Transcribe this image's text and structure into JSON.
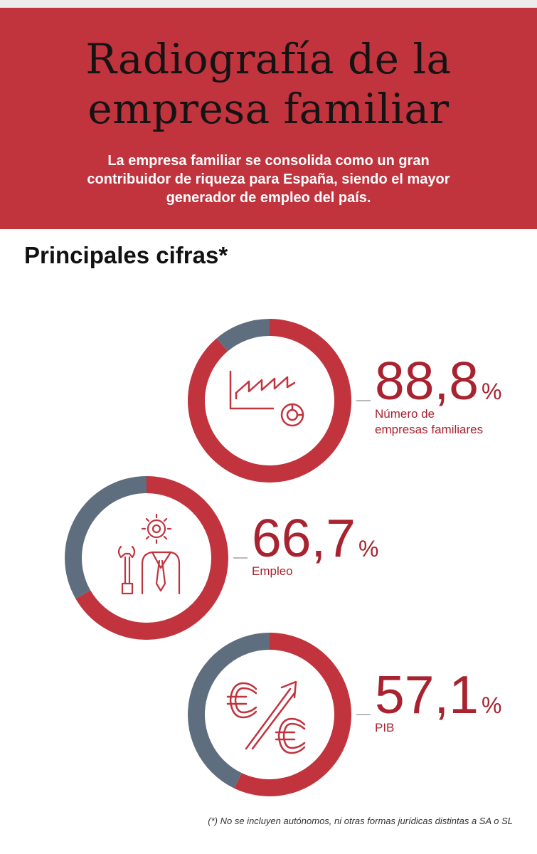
{
  "header": {
    "title_line1": "Radiografía de la",
    "title_line2": "empresa familiar",
    "subtitle": "La empresa familiar se consolida como un gran contribuidor de riqueza para España, siendo el mayor generador de empleo del país."
  },
  "section_title": "Principales cifras*",
  "footnote": "(*) No se incluyen autónomos, ni otras formas jurídicas distintas a SA o SL",
  "colors": {
    "accent": "#c1333d",
    "remainder": "#5f6e7e",
    "text_red": "#a8232f"
  },
  "chart_data": [
    {
      "type": "pie",
      "value": 88.8,
      "value_label": "88,8",
      "unit": "%",
      "label": [
        "Número de",
        "empresas familiares"
      ],
      "icon": "factory-chart-icon"
    },
    {
      "type": "pie",
      "value": 66.7,
      "value_label": "66,7",
      "unit": "%",
      "label": [
        "Empleo"
      ],
      "icon": "worker-gear-icon"
    },
    {
      "type": "pie",
      "value": 57.1,
      "value_label": "57,1",
      "unit": "%",
      "label": [
        "PIB"
      ],
      "icon": "euro-growth-icon"
    }
  ]
}
